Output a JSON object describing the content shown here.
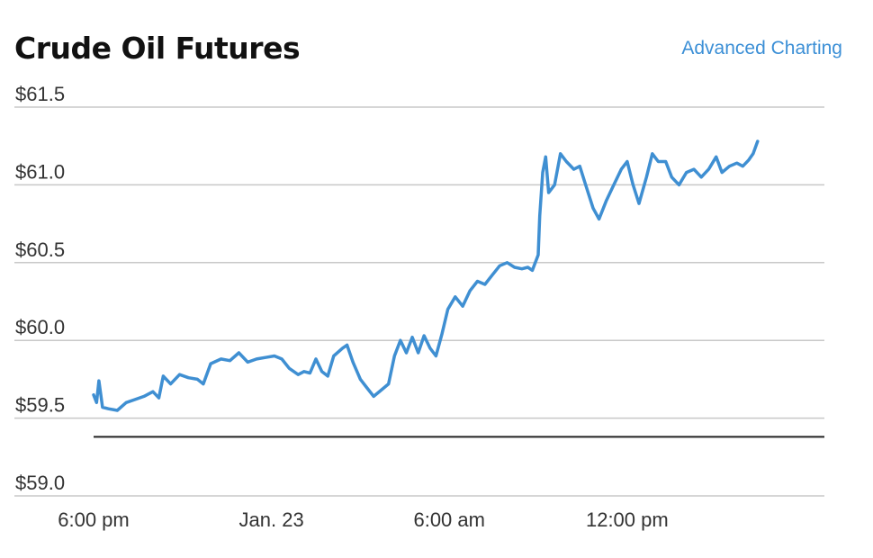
{
  "header": {
    "title": "Crude Oil Futures",
    "link_label": "Advanced Charting"
  },
  "colors": {
    "line": "#3f8fd2",
    "link": "#3b8fd6",
    "grid": "#c8c8c8",
    "baseline": "#222222"
  },
  "chart_data": {
    "type": "line",
    "title": "Crude Oil Futures",
    "xlabel": "",
    "ylabel": "",
    "y_ticks": [
      {
        "value": 61.5,
        "label": "$61.5"
      },
      {
        "value": 61.0,
        "label": "$61.0"
      },
      {
        "value": 60.5,
        "label": "$60.5"
      },
      {
        "value": 60.0,
        "label": "$60.0"
      },
      {
        "value": 59.5,
        "label": "$59.5"
      },
      {
        "value": 59.0,
        "label": "$59.0"
      }
    ],
    "ylim": [
      59.0,
      61.5
    ],
    "x_ticks": [
      {
        "value": 0,
        "label": "6:00 pm"
      },
      {
        "value": 6,
        "label": "Jan. 23"
      },
      {
        "value": 12,
        "label": "6:00 am"
      },
      {
        "value": 18,
        "label": "12:00 pm"
      }
    ],
    "x_unit": "hours after 6:00 pm",
    "xlim": [
      0,
      23.5
    ],
    "reference_line": 59.38,
    "grid": true,
    "series": [
      {
        "points": [
          [
            0.0,
            59.65
          ],
          [
            0.1,
            59.6
          ],
          [
            0.18,
            59.74
          ],
          [
            0.3,
            59.57
          ],
          [
            0.5,
            59.56
          ],
          [
            0.8,
            59.55
          ],
          [
            1.1,
            59.6
          ],
          [
            1.4,
            59.62
          ],
          [
            1.7,
            59.64
          ],
          [
            2.0,
            59.67
          ],
          [
            2.2,
            59.63
          ],
          [
            2.35,
            59.77
          ],
          [
            2.6,
            59.72
          ],
          [
            2.9,
            59.78
          ],
          [
            3.2,
            59.76
          ],
          [
            3.5,
            59.75
          ],
          [
            3.7,
            59.72
          ],
          [
            3.95,
            59.85
          ],
          [
            4.3,
            59.88
          ],
          [
            4.6,
            59.87
          ],
          [
            4.9,
            59.92
          ],
          [
            5.2,
            59.86
          ],
          [
            5.5,
            59.88
          ],
          [
            5.8,
            59.89
          ],
          [
            6.1,
            59.9
          ],
          [
            6.35,
            59.88
          ],
          [
            6.6,
            59.82
          ],
          [
            6.9,
            59.78
          ],
          [
            7.1,
            59.8
          ],
          [
            7.3,
            59.79
          ],
          [
            7.5,
            59.88
          ],
          [
            7.7,
            59.8
          ],
          [
            7.9,
            59.77
          ],
          [
            8.1,
            59.9
          ],
          [
            8.4,
            59.95
          ],
          [
            8.55,
            59.97
          ],
          [
            8.75,
            59.86
          ],
          [
            9.0,
            59.75
          ],
          [
            9.2,
            59.7
          ],
          [
            9.45,
            59.64
          ],
          [
            9.7,
            59.68
          ],
          [
            9.95,
            59.72
          ],
          [
            10.15,
            59.9
          ],
          [
            10.35,
            60.0
          ],
          [
            10.55,
            59.92
          ],
          [
            10.75,
            60.02
          ],
          [
            10.95,
            59.92
          ],
          [
            11.15,
            60.03
          ],
          [
            11.35,
            59.95
          ],
          [
            11.55,
            59.9
          ],
          [
            11.75,
            60.04
          ],
          [
            11.95,
            60.2
          ],
          [
            12.2,
            60.28
          ],
          [
            12.45,
            60.22
          ],
          [
            12.7,
            60.32
          ],
          [
            12.95,
            60.38
          ],
          [
            13.2,
            60.36
          ],
          [
            13.45,
            60.42
          ],
          [
            13.7,
            60.48
          ],
          [
            13.95,
            60.5
          ],
          [
            14.2,
            60.47
          ],
          [
            14.45,
            60.46
          ],
          [
            14.65,
            60.47
          ],
          [
            14.8,
            60.45
          ],
          [
            15.0,
            60.55
          ],
          [
            15.05,
            60.8
          ],
          [
            15.15,
            61.08
          ],
          [
            15.25,
            61.18
          ],
          [
            15.35,
            60.95
          ],
          [
            15.55,
            61.0
          ],
          [
            15.75,
            61.2
          ],
          [
            15.95,
            61.15
          ],
          [
            16.2,
            61.1
          ],
          [
            16.4,
            61.12
          ],
          [
            16.6,
            61.0
          ],
          [
            16.85,
            60.85
          ],
          [
            17.05,
            60.78
          ],
          [
            17.3,
            60.9
          ],
          [
            17.55,
            61.0
          ],
          [
            17.8,
            61.1
          ],
          [
            18.0,
            61.15
          ],
          [
            18.2,
            61.0
          ],
          [
            18.4,
            60.88
          ],
          [
            18.65,
            61.05
          ],
          [
            18.85,
            61.2
          ],
          [
            19.05,
            61.15
          ],
          [
            19.3,
            61.15
          ],
          [
            19.5,
            61.05
          ],
          [
            19.75,
            61.0
          ],
          [
            20.0,
            61.08
          ],
          [
            20.25,
            61.1
          ],
          [
            20.5,
            61.05
          ],
          [
            20.75,
            61.1
          ],
          [
            21.0,
            61.18
          ],
          [
            21.2,
            61.08
          ],
          [
            21.45,
            61.12
          ],
          [
            21.7,
            61.14
          ],
          [
            21.9,
            61.12
          ],
          [
            22.1,
            61.16
          ],
          [
            22.25,
            61.2
          ],
          [
            22.4,
            61.28
          ]
        ]
      }
    ]
  }
}
